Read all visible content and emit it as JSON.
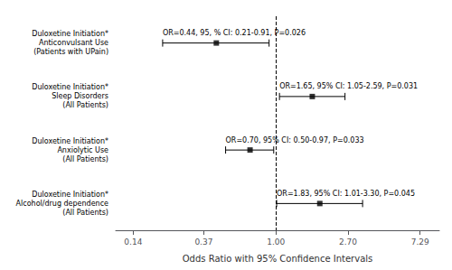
{
  "chart_data": {
    "type": "forest",
    "categories": [
      "Duloxetine Initiation*\nAnticonvulsant Use\n(Patients with UPain)",
      "Duloxetine Initiation*\nSleep Disorders\n(All Patients)",
      "Duloxetine Initiation*\nAnxiolytic Use\n(All Patients)",
      "Duloxetine Initiation*\nAlcohol/drug dependence\n(All Patients)"
    ],
    "values": [
      0.44,
      1.65,
      0.7,
      1.83
    ],
    "ci_low": [
      0.21,
      1.05,
      0.5,
      1.01
    ],
    "ci_high": [
      0.91,
      2.59,
      0.97,
      3.3
    ],
    "annotations": [
      "OR=0.44, 95, % CI: 0.21-0.91, P=0.026",
      "OR=1.65, 95% CI: 1.05-2.59, P=0.031",
      "OR=0.70, 95% CI: 0.50-0.97, P=0.033",
      "OR=1.83, 95% CI: 1.01-3.30, P=0.045"
    ],
    "xlabel": "Odds Ratio with 95% Confidence Intervals",
    "xlim": [
      0.11,
      9.5
    ],
    "xticks": [
      0.14,
      0.37,
      {
        "value": 1.0,
        "label": "1.00"
      },
      {
        "value": 2.7,
        "label": "2.70"
      },
      7.29
    ],
    "log": "x",
    "vline": 1.0,
    "color": "black",
    "marker": "square",
    "grid": false
  }
}
